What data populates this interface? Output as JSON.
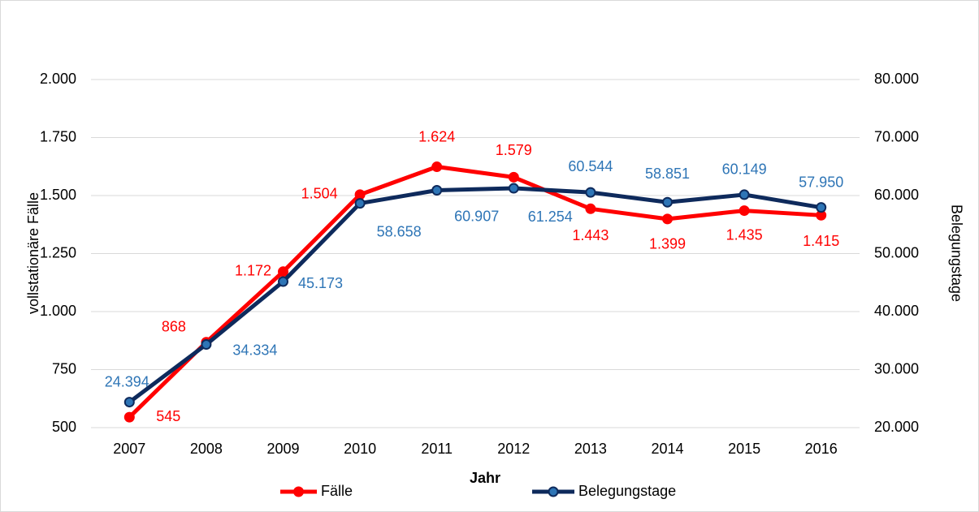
{
  "chart_data": {
    "type": "line",
    "categories": [
      "2007",
      "2008",
      "2009",
      "2010",
      "2011",
      "2012",
      "2013",
      "2014",
      "2015",
      "2016"
    ],
    "x_label": "Jahr",
    "y_label": "vollstationäre Fälle",
    "y2_label": "Belegungstage",
    "ylim": [
      500,
      2000
    ],
    "yticks": [
      500,
      750,
      {
        "value": 1000,
        "label": "1.000"
      },
      {
        "value": 1250,
        "label": "1.250"
      },
      {
        "value": 1500,
        "label": "1.500"
      },
      {
        "value": 1750,
        "label": "1.750"
      },
      {
        "value": 2000,
        "label": "2.000"
      }
    ],
    "y2lim": [
      20000,
      80000
    ],
    "y2ticks": [
      {
        "value": 20000,
        "label": "20.000"
      },
      {
        "value": 30000,
        "label": "30.000"
      },
      {
        "value": 40000,
        "label": "40.000"
      },
      {
        "value": 50000,
        "label": "50.000"
      },
      {
        "value": 60000,
        "label": "60.000"
      },
      {
        "value": 70000,
        "label": "70.000"
      },
      {
        "value": 80000,
        "label": "80.000"
      }
    ],
    "grid": true,
    "legend": "bottom",
    "series": [
      {
        "name": "Fälle",
        "color": "#ff0000",
        "values": [
          545,
          868,
          1172,
          1504,
          1624,
          1579,
          1443,
          1399,
          1435,
          1415
        ],
        "value_labels": [
          "545",
          "868",
          "1.172",
          "1.504",
          "1.624",
          "1.579",
          "1.443",
          "1.399",
          "1.435",
          "1.415"
        ]
      },
      {
        "name": "Belegungstage",
        "color": "#0e2a5c",
        "axis": "y2",
        "values": [
          24394,
          34334,
          45173,
          58658,
          60907,
          61254,
          60544,
          58851,
          60149,
          57950
        ],
        "value_labels": [
          "24.394",
          "34.334",
          "45.173",
          "58.658",
          "60.907",
          "61.254",
          "60.544",
          "58.851",
          "60.149",
          "57.950"
        ]
      }
    ]
  }
}
